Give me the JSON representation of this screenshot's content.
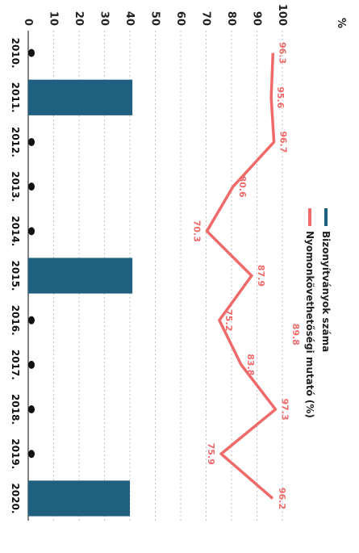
{
  "chart_data": {
    "type": "bar+line",
    "categories": [
      "2010.",
      "2011.",
      "2012.",
      "2013.",
      "2014.",
      "2015.",
      "2016.",
      "2017.",
      "2018.",
      "2019.",
      "2020."
    ],
    "series": [
      {
        "name": "Bizonyítványok száma",
        "type": "bar",
        "color": "#1f5f7f",
        "values": [
          0,
          41,
          0,
          0,
          0,
          41,
          0,
          0,
          0,
          0,
          40
        ]
      },
      {
        "name": "Nyomonkövethetőségi mutató (%)",
        "type": "line",
        "color": "#f06a6a",
        "values": [
          96.3,
          95.6,
          96.7,
          80.6,
          70.3,
          87.9,
          75.2,
          83.8,
          97.3,
          75.9,
          96.2
        ],
        "labels": [
          "96.3",
          "95.6",
          "96.7",
          "80.6",
          "70.3",
          "87.9",
          "75.2",
          "83.8",
          "97.3",
          "75.9",
          "96.2"
        ]
      }
    ],
    "extra_label": "89.8",
    "ylim": [
      0,
      100
    ],
    "yticks": [
      "0",
      "10",
      "20",
      "30",
      "40",
      "50",
      "60",
      "70",
      "80",
      "90",
      "100"
    ],
    "yunit": "%",
    "zero_markers": true,
    "legend_position": "top"
  }
}
